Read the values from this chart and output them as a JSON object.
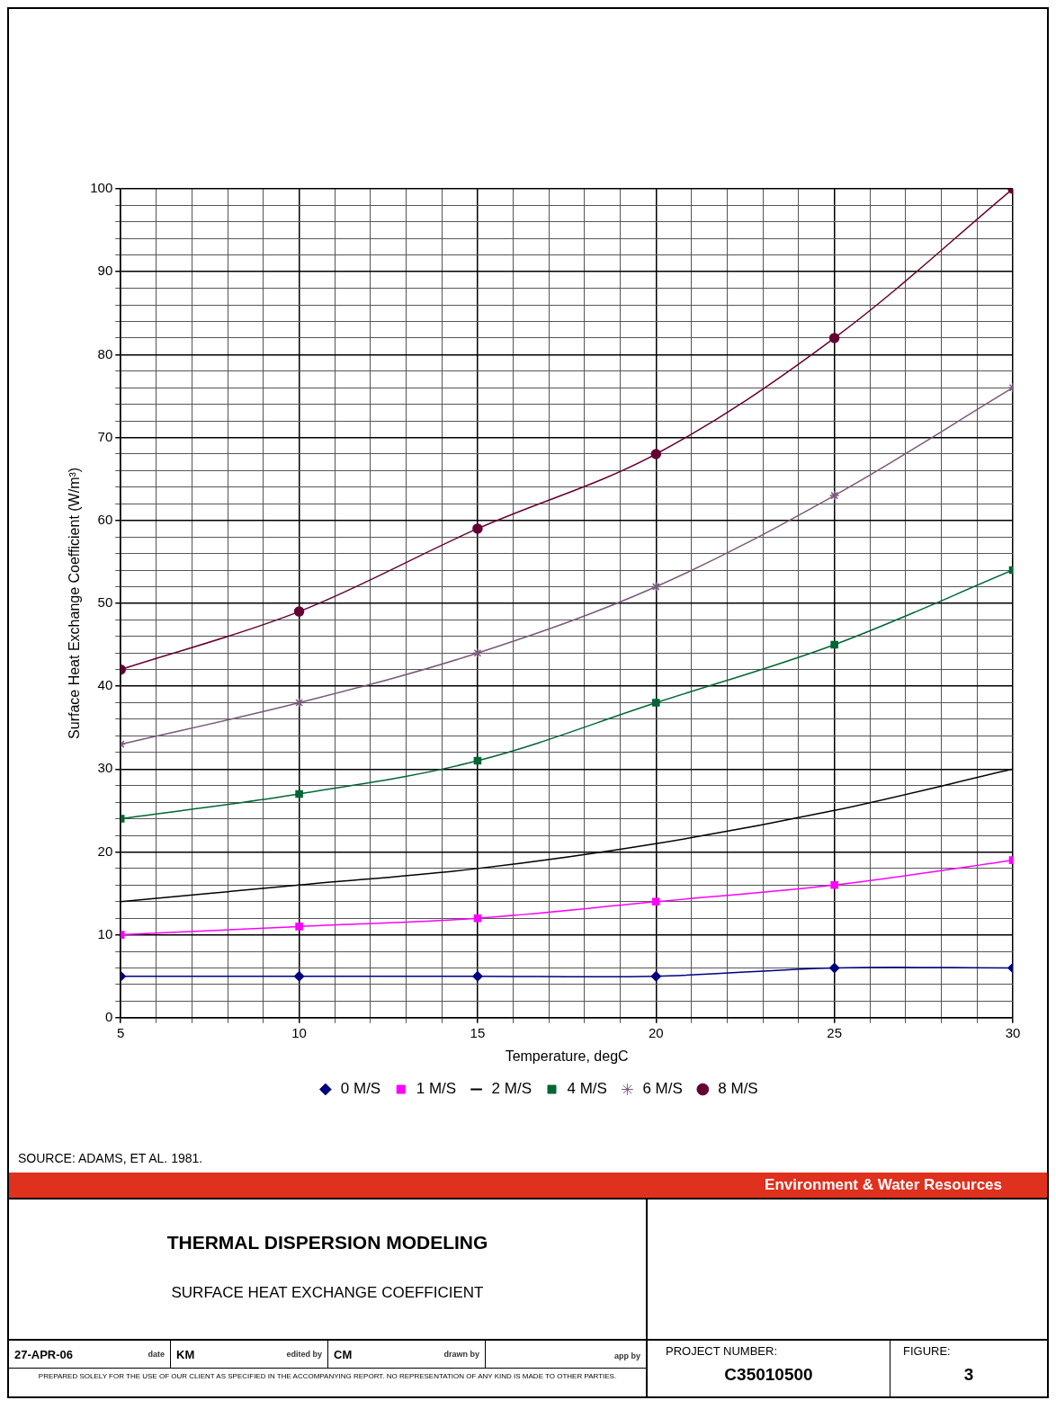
{
  "chart_data": {
    "type": "line",
    "title": "THERMAL DISPERSION MODELING",
    "subtitle": "SURFACE HEAT EXCHANGE COEFFICIENT",
    "xlabel": "Temperature, degC",
    "ylabel": "Surface Heat Exchange Coefficient (W/m³)",
    "x": [
      5,
      10,
      15,
      20,
      25,
      30
    ],
    "series": [
      {
        "name": "0 M/S",
        "color": "#000080",
        "marker": "diamond",
        "values": [
          5,
          5,
          5,
          5,
          6,
          6
        ]
      },
      {
        "name": "1 M/S",
        "color": "#ff00ff",
        "marker": "square",
        "values": [
          10,
          11,
          12,
          14,
          16,
          19
        ]
      },
      {
        "name": "2 M/S",
        "color": "#000000",
        "marker": "none",
        "values": [
          14,
          16,
          18,
          21,
          25,
          30
        ]
      },
      {
        "name": "4 M/S",
        "color": "#006633",
        "marker": "square",
        "values": [
          24,
          27,
          31,
          38,
          45,
          54
        ]
      },
      {
        "name": "6 M/S",
        "color": "#7a5a7a",
        "marker": "cross",
        "values": [
          33,
          38,
          44,
          52,
          63,
          76
        ]
      },
      {
        "name": "8 M/S",
        "color": "#660033",
        "marker": "circle",
        "values": [
          42,
          49,
          59,
          68,
          82,
          100
        ]
      }
    ],
    "xlim": [
      5,
      30
    ],
    "xticks": [
      5,
      {
        "value": 6,
        "label": null
      },
      {
        "value": 7,
        "label": null
      },
      {
        "value": 8,
        "label": null
      },
      {
        "value": 9,
        "label": null
      },
      10,
      {
        "value": 11,
        "label": null
      },
      {
        "value": 12,
        "label": null
      },
      {
        "value": 13,
        "label": null
      },
      {
        "value": 14,
        "label": null
      },
      15,
      {
        "value": 16,
        "label": null
      },
      {
        "value": 17,
        "label": null
      },
      {
        "value": 18,
        "label": null
      },
      {
        "value": 19,
        "label": null
      },
      20,
      {
        "value": 21,
        "label": null
      },
      {
        "value": 22,
        "label": null
      },
      {
        "value": 23,
        "label": null
      },
      {
        "value": 24,
        "label": null
      },
      25,
      {
        "value": 26,
        "label": null
      },
      {
        "value": 27,
        "label": null
      },
      {
        "value": 28,
        "label": null
      },
      {
        "value": 29,
        "label": null
      },
      30
    ],
    "ylim": [
      0,
      100
    ],
    "yticks": [
      0,
      {
        "value": 2,
        "label": null
      },
      {
        "value": 4,
        "label": null
      },
      {
        "value": 6,
        "label": null
      },
      {
        "value": 8,
        "label": null
      },
      10,
      {
        "value": 12,
        "label": null
      },
      {
        "value": 14,
        "label": null
      },
      {
        "value": 16,
        "label": null
      },
      {
        "value": 18,
        "label": null
      },
      20,
      {
        "value": 22,
        "label": null
      },
      {
        "value": 24,
        "label": null
      },
      {
        "value": 26,
        "label": null
      },
      {
        "value": 28,
        "label": null
      },
      30,
      {
        "value": 32,
        "label": null
      },
      {
        "value": 34,
        "label": null
      },
      {
        "value": 36,
        "label": null
      },
      {
        "value": 38,
        "label": null
      },
      40,
      {
        "value": 42,
        "label": null
      },
      {
        "value": 44,
        "label": null
      },
      {
        "value": 46,
        "label": null
      },
      {
        "value": 48,
        "label": null
      },
      50,
      {
        "value": 52,
        "label": null
      },
      {
        "value": 54,
        "label": null
      },
      {
        "value": 56,
        "label": null
      },
      {
        "value": 58,
        "label": null
      },
      60,
      {
        "value": 62,
        "label": null
      },
      {
        "value": 64,
        "label": null
      },
      {
        "value": 66,
        "label": null
      },
      {
        "value": 68,
        "label": null
      },
      70,
      {
        "value": 72,
        "label": null
      },
      {
        "value": 74,
        "label": null
      },
      {
        "value": 76,
        "label": null
      },
      {
        "value": 78,
        "label": null
      },
      80,
      {
        "value": 82,
        "label": null
      },
      {
        "value": 84,
        "label": null
      },
      {
        "value": 86,
        "label": null
      },
      {
        "value": 88,
        "label": null
      },
      90,
      {
        "value": 92,
        "label": null
      },
      {
        "value": 94,
        "label": null
      },
      {
        "value": 96,
        "label": null
      },
      {
        "value": 98,
        "label": null
      },
      100
    ],
    "grid": true,
    "legend": "bottom",
    "line_style": "solid",
    "annotations": [
      "SOURCE:  ADAMS, ET AL. 1981.",
      "Environment & Water Resources",
      "27-APR-06",
      "date",
      "KM",
      "edited by",
      "CM",
      "drawn by",
      "app by",
      "PROJECT NUMBER:",
      "C35010500",
      "FIGURE:",
      "3",
      "PREPARED SOLELY FOR THE USE OF OUR CLIENT AS SPECIFIED IN THE ACCOMPANYING REPORT. NO REPRESENTATION OF ANY KIND IS MADE TO OTHER PARTIES."
    ]
  }
}
